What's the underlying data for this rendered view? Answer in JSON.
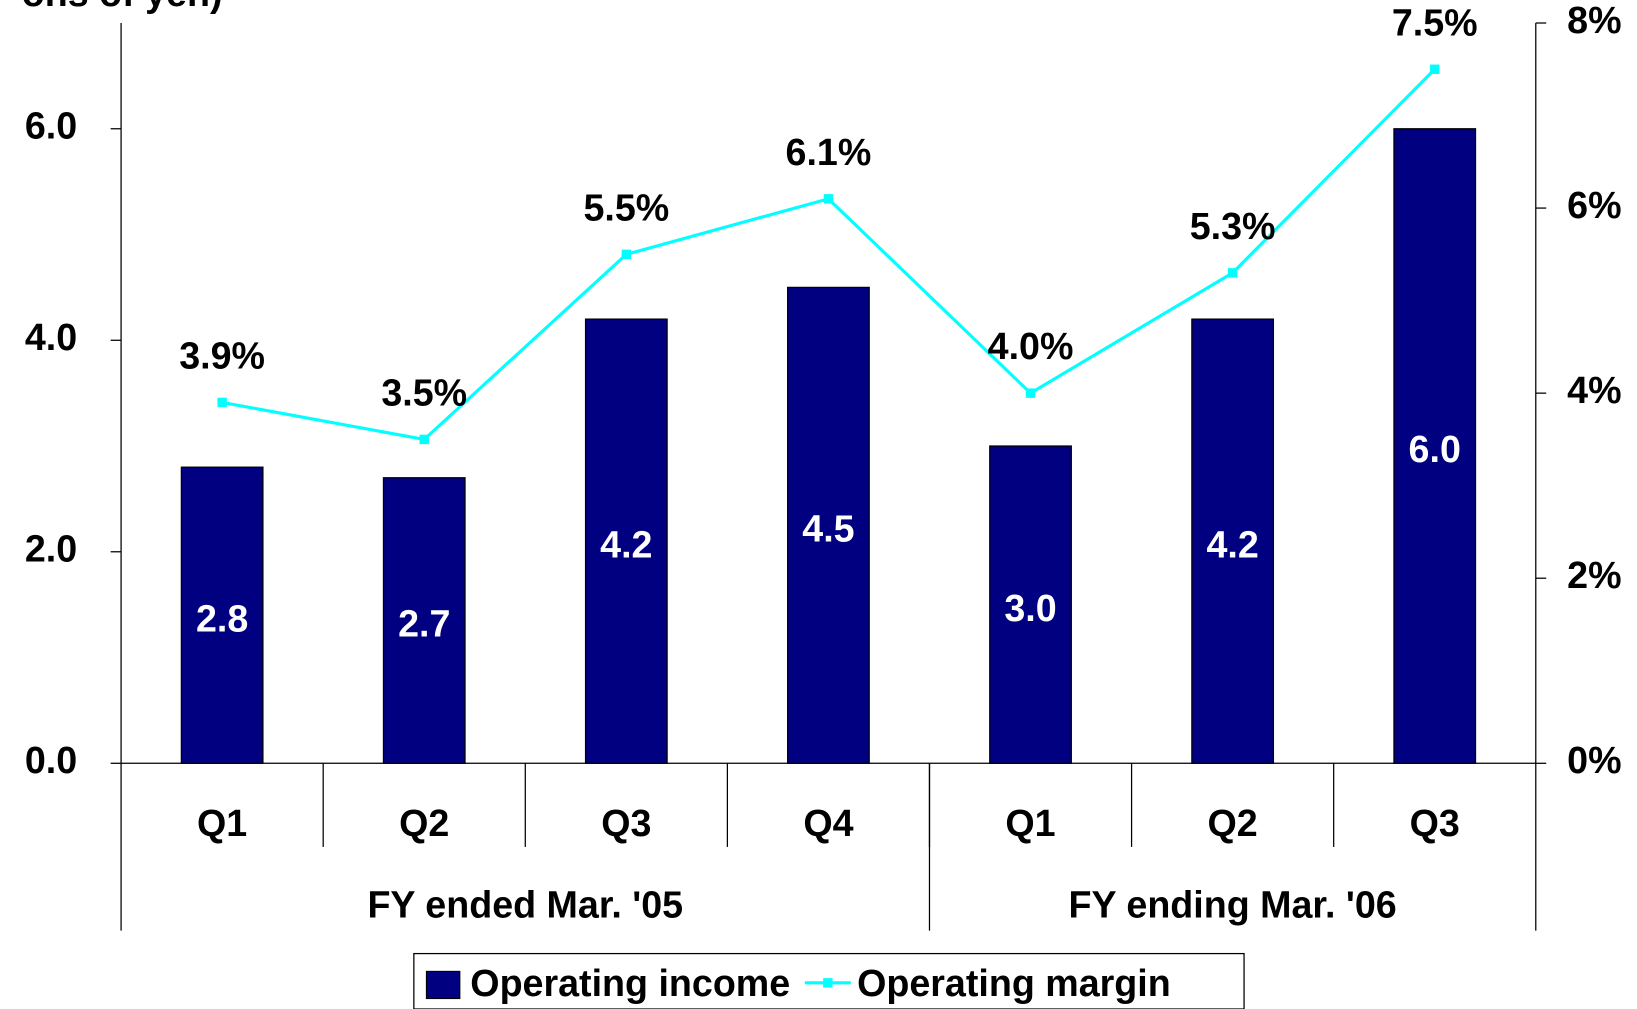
{
  "chart_data": {
    "type": "bar-line",
    "y_label": "ons of yen)",
    "categories": [
      "Q1",
      "Q2",
      "Q3",
      "Q4",
      "Q1",
      "Q2",
      "Q3"
    ],
    "groups": [
      {
        "label": "FY ended Mar. '05",
        "count": 4
      },
      {
        "label": "FY ending Mar. '06",
        "count": 3
      }
    ],
    "series": [
      {
        "name": "Operating income",
        "type": "bar",
        "color": "#000080",
        "values": [
          2.8,
          2.7,
          4.2,
          4.5,
          3.0,
          4.2,
          6.0
        ],
        "value_labels": [
          "2.8",
          "2.7",
          "4.2",
          "4.5",
          "3.0",
          "4.2",
          "6.0"
        ]
      },
      {
        "name": "Operating margin",
        "type": "line",
        "axis": "y2",
        "color": "#00ffff",
        "values": [
          3.9,
          3.5,
          5.5,
          6.1,
          4.0,
          5.3,
          7.5
        ],
        "value_labels": [
          "3.9%",
          "3.5%",
          "5.5%",
          "6.1%",
          "4.0%",
          "5.3%",
          "7.5%"
        ]
      }
    ],
    "ylim": [
      0,
      7
    ],
    "yticks": [
      {
        "value": 0,
        "label": "0.0"
      },
      {
        "value": 2,
        "label": "2.0"
      },
      {
        "value": 4,
        "label": "4.0"
      },
      {
        "value": 6,
        "label": "6.0"
      }
    ],
    "y2lim": [
      0,
      8
    ],
    "y2ticks": [
      {
        "value": 0,
        "label": "0%"
      },
      {
        "value": 2,
        "label": "2%"
      },
      {
        "value": 4,
        "label": "4%"
      },
      {
        "value": 6,
        "label": "6%"
      },
      {
        "value": 8,
        "label": "8%"
      }
    ],
    "legend": "bottom"
  }
}
